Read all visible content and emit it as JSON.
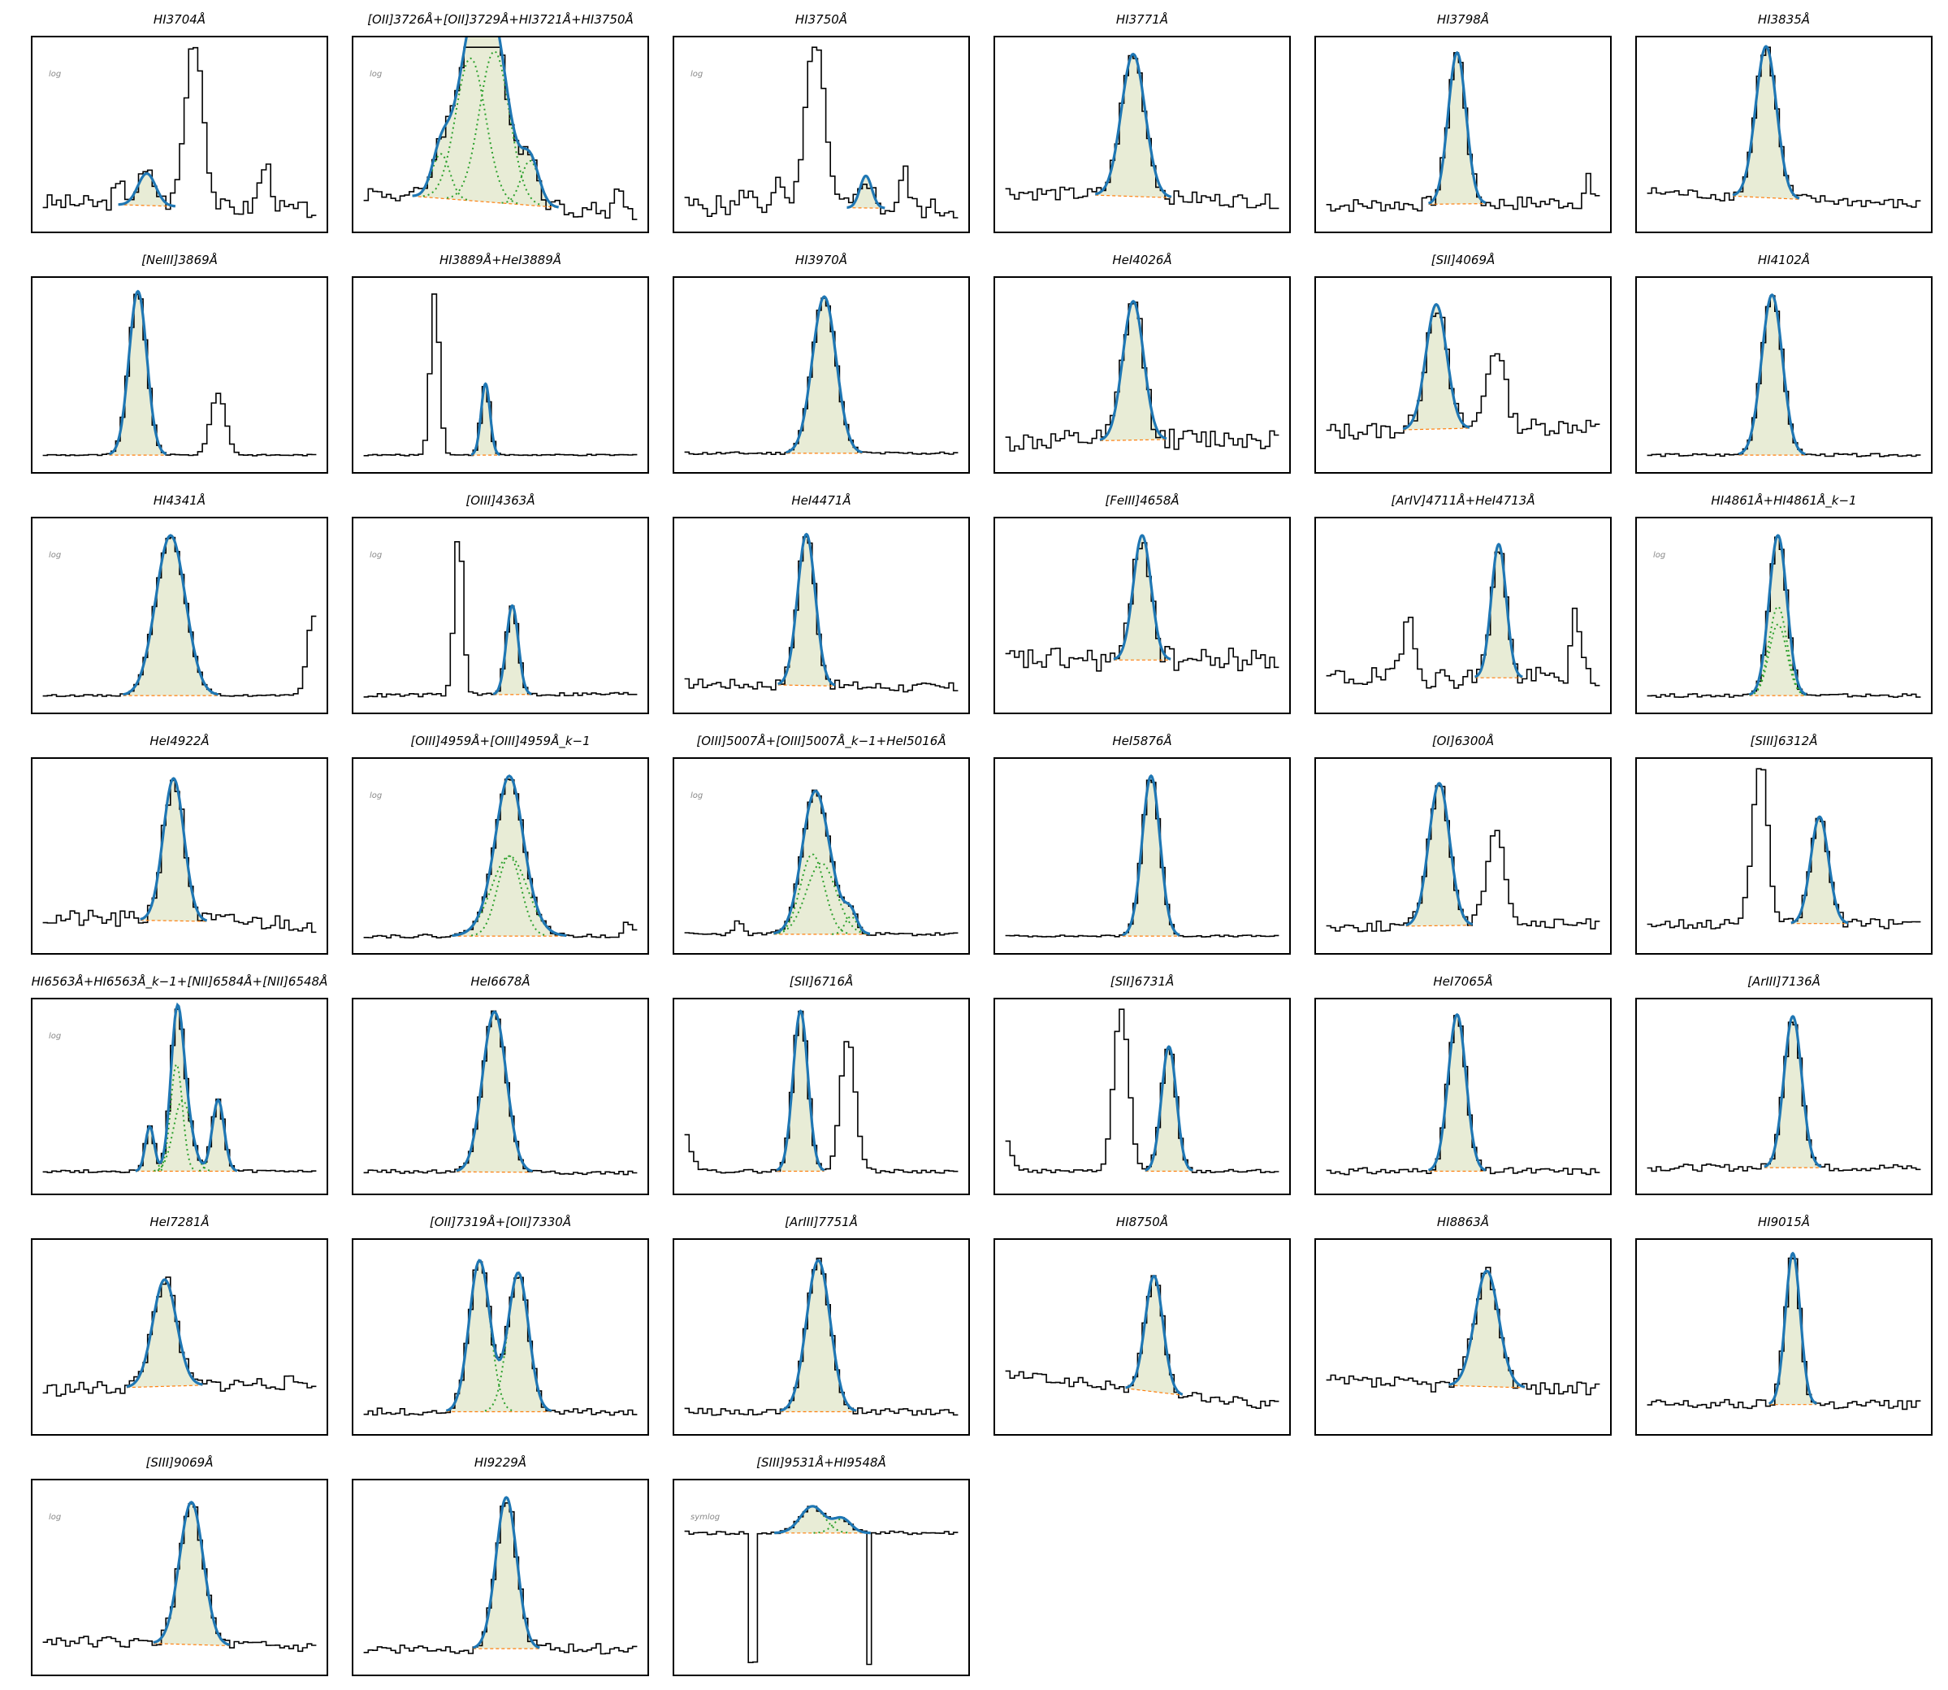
{
  "colors": {
    "spectrum": "#000000",
    "fit": "#1f77b4",
    "component": "#2ca02c",
    "continuum": "#ff7f0e",
    "fill": "#e8ecd6"
  },
  "chart_data": [
    {
      "type": "line",
      "title": "HI3704Å",
      "scale": "log",
      "continuum": [
        0.12,
        0.07
      ],
      "fit": [
        [
          0.39,
          0.03,
          0.18
        ]
      ],
      "others": [
        [
          0.3,
          0.02,
          0.1
        ],
        [
          0.55,
          0.03,
          0.95
        ],
        [
          0.79,
          0.02,
          0.25
        ]
      ],
      "noise": 0.05
    },
    {
      "type": "line",
      "title": "[OII]3726Å+[OII]3729Å+HI3721Å+HI3750Å",
      "scale": "log",
      "continuum": [
        0.18,
        0.05
      ],
      "fit": [
        [
          0.3,
          0.03,
          0.25
        ],
        [
          0.4,
          0.05,
          0.8
        ],
        [
          0.48,
          0.05,
          0.85
        ],
        [
          0.6,
          0.03,
          0.25
        ]
      ],
      "components": true,
      "others": [
        [
          0.9,
          0.01,
          0.2
        ]
      ],
      "noise": 0.05
    },
    {
      "type": "line",
      "title": "HI3750Å",
      "scale": "log",
      "continuum": [
        0.1,
        0.08
      ],
      "fit": [
        [
          0.65,
          0.02,
          0.18
        ]
      ],
      "others": [
        [
          0.48,
          0.03,
          0.95
        ],
        [
          0.35,
          0.015,
          0.15
        ],
        [
          0.25,
          0.015,
          0.1
        ],
        [
          0.78,
          0.015,
          0.2
        ]
      ],
      "noise": 0.06
    },
    {
      "type": "line",
      "title": "HI3771Å",
      "scale": "",
      "continuum": [
        0.18,
        0.12
      ],
      "fit": [
        [
          0.47,
          0.04,
          0.8
        ]
      ],
      "noise": 0.04
    },
    {
      "type": "line",
      "title": "HI3798Å",
      "scale": "",
      "continuum": [
        0.1,
        0.12
      ],
      "fit": [
        [
          0.48,
          0.03,
          0.85
        ]
      ],
      "others": [
        [
          0.92,
          0.01,
          0.15
        ]
      ],
      "noise": 0.04
    },
    {
      "type": "line",
      "title": "HI3835Å",
      "scale": "",
      "continuum": [
        0.18,
        0.1
      ],
      "fit": [
        [
          0.44,
          0.035,
          0.85
        ]
      ],
      "noise": 0.03
    },
    {
      "type": "line",
      "title": "[NeIII]3869Å",
      "scale": "",
      "continuum": [
        0.05,
        0.05
      ],
      "fit": [
        [
          0.36,
          0.03,
          0.92
        ]
      ],
      "others": [
        [
          0.63,
          0.025,
          0.35
        ]
      ],
      "noise": 0.004
    },
    {
      "type": "line",
      "title": "HI3889Å+HeI3889Å",
      "scale": "",
      "continuum": [
        0.05,
        0.05
      ],
      "fit": [
        [
          0.45,
          0.015,
          0.4
        ]
      ],
      "others": [
        [
          0.28,
          0.015,
          0.92
        ]
      ],
      "noise": 0.004
    },
    {
      "type": "line",
      "title": "HI3970Å",
      "scale": "",
      "continuum": [
        0.06,
        0.06
      ],
      "fit": [
        [
          0.51,
          0.04,
          0.88
        ]
      ],
      "noise": 0.008
    },
    {
      "type": "line",
      "title": "HeI4026Å",
      "scale": "",
      "continuum": [
        0.12,
        0.15
      ],
      "fit": [
        [
          0.47,
          0.035,
          0.78
        ]
      ],
      "noise": 0.06
    },
    {
      "type": "line",
      "title": "[SII]4069Å",
      "scale": "",
      "continuum": [
        0.18,
        0.22
      ],
      "fit": [
        [
          0.41,
          0.035,
          0.7
        ]
      ],
      "others": [
        [
          0.61,
          0.03,
          0.45
        ]
      ],
      "noise": 0.05
    },
    {
      "type": "line",
      "title": "HI4102Å",
      "scale": "",
      "continuum": [
        0.05,
        0.05
      ],
      "fit": [
        [
          0.46,
          0.035,
          0.9
        ]
      ],
      "noise": 0.008
    },
    {
      "type": "line",
      "title": "HI4341Å",
      "scale": "log",
      "continuum": [
        0.05,
        0.05
      ],
      "fit": [
        [
          0.47,
          0.05,
          0.9
        ]
      ],
      "others": [
        [
          0.95,
          0.02,
          0.45
        ]
      ],
      "noise": 0.005
    },
    {
      "type": "line",
      "title": "[OIII]4363Å",
      "scale": "log",
      "continuum": [
        0.05,
        0.06
      ],
      "fit": [
        [
          0.54,
          0.02,
          0.5
        ]
      ],
      "others": [
        [
          0.36,
          0.015,
          0.92
        ]
      ],
      "noise": 0.01
    },
    {
      "type": "line",
      "title": "HeI4471Å",
      "scale": "",
      "continuum": [
        0.12,
        0.09
      ],
      "fit": [
        [
          0.45,
          0.03,
          0.85
        ]
      ],
      "noise": 0.03
    },
    {
      "type": "line",
      "title": "[FeIII]4658Å",
      "scale": "",
      "continuum": [
        0.25,
        0.25
      ],
      "fit": [
        [
          0.5,
          0.03,
          0.7
        ]
      ],
      "noise": 0.07
    },
    {
      "type": "line",
      "title": "[ArIV]4711Å+HeI4713Å",
      "scale": "",
      "continuum": [
        0.15,
        0.15
      ],
      "fit": [
        [
          0.62,
          0.025,
          0.75
        ]
      ],
      "others": [
        [
          0.32,
          0.02,
          0.35
        ],
        [
          0.88,
          0.015,
          0.35
        ]
      ],
      "noise": 0.06
    },
    {
      "type": "line",
      "title": "HI4861Å+HI4861Å_k−1",
      "scale": "log",
      "continuum": [
        0.05,
        0.05
      ],
      "fit": [
        [
          0.48,
          0.03,
          0.4
        ],
        [
          0.48,
          0.03,
          0.5
        ]
      ],
      "components": true,
      "noise": 0.01
    },
    {
      "type": "line",
      "title": "HeI4922Å",
      "scale": "",
      "continuum": [
        0.15,
        0.12
      ],
      "fit": [
        [
          0.48,
          0.035,
          0.8
        ]
      ],
      "noise": 0.05
    },
    {
      "type": "line",
      "title": "[OIII]4959Å+[OIII]4959Å_k−1",
      "scale": "log",
      "continuum": [
        0.05,
        0.05
      ],
      "fit": [
        [
          0.53,
          0.04,
          0.45
        ],
        [
          0.53,
          0.06,
          0.45
        ]
      ],
      "components": true,
      "others": [
        [
          0.93,
          0.015,
          0.08
        ]
      ],
      "noise": 0.01
    },
    {
      "type": "line",
      "title": "[OIII]5007Å+[OIII]5007Å_k−1+HeI5016Å",
      "scale": "log",
      "continuum": [
        0.06,
        0.06
      ],
      "fit": [
        [
          0.47,
          0.04,
          0.45
        ],
        [
          0.5,
          0.05,
          0.4
        ],
        [
          0.6,
          0.02,
          0.1
        ]
      ],
      "components": true,
      "others": [
        [
          0.22,
          0.015,
          0.07
        ]
      ],
      "noise": 0.01
    },
    {
      "type": "line",
      "title": "HeI5876Å",
      "scale": "",
      "continuum": [
        0.05,
        0.05
      ],
      "fit": [
        [
          0.53,
          0.03,
          0.9
        ]
      ],
      "noise": 0.005
    },
    {
      "type": "line",
      "title": "[OI]6300Å",
      "scale": "",
      "continuum": [
        0.1,
        0.12
      ],
      "fit": [
        [
          0.42,
          0.035,
          0.8
        ]
      ],
      "others": [
        [
          0.61,
          0.03,
          0.55
        ]
      ],
      "noise": 0.03
    },
    {
      "type": "line",
      "title": "[SIII]6312Å",
      "scale": "",
      "continuum": [
        0.12,
        0.12
      ],
      "fit": [
        [
          0.62,
          0.03,
          0.6
        ]
      ],
      "others": [
        [
          0.42,
          0.025,
          0.92
        ]
      ],
      "noise": 0.03
    },
    {
      "type": "line",
      "title": "HI6563Å+HI6563Å_k−1+[NII]6584Å+[NII]6548Å",
      "scale": "log",
      "continuum": [
        0.08,
        0.08
      ],
      "fit": [
        [
          0.49,
          0.02,
          0.6
        ],
        [
          0.51,
          0.03,
          0.4
        ],
        [
          0.63,
          0.02,
          0.4
        ],
        [
          0.4,
          0.015,
          0.25
        ]
      ],
      "components": true,
      "noise": 0.008
    },
    {
      "type": "line",
      "title": "HeI6678Å",
      "scale": "",
      "continuum": [
        0.08,
        0.07
      ],
      "fit": [
        [
          0.48,
          0.04,
          0.9
        ]
      ],
      "noise": 0.01
    },
    {
      "type": "line",
      "title": "[SII]6716Å",
      "scale": "",
      "continuum": [
        0.08,
        0.08
      ],
      "fit": [
        [
          0.43,
          0.025,
          0.9
        ]
      ],
      "others": [
        [
          0.59,
          0.025,
          0.75
        ],
        [
          0.02,
          0.03,
          0.3
        ]
      ],
      "noise": 0.01
    },
    {
      "type": "line",
      "title": "[SII]6731Å",
      "scale": "",
      "continuum": [
        0.08,
        0.08
      ],
      "fit": [
        [
          0.59,
          0.025,
          0.7
        ]
      ],
      "others": [
        [
          0.43,
          0.025,
          0.92
        ],
        [
          0.02,
          0.03,
          0.25
        ]
      ],
      "noise": 0.01
    },
    {
      "type": "line",
      "title": "HeI7065Å",
      "scale": "",
      "continuum": [
        0.08,
        0.08
      ],
      "fit": [
        [
          0.48,
          0.03,
          0.88
        ]
      ],
      "noise": 0.02
    },
    {
      "type": "line",
      "title": "[ArIII]7136Å",
      "scale": "",
      "continuum": [
        0.1,
        0.1
      ],
      "fit": [
        [
          0.53,
          0.03,
          0.85
        ]
      ],
      "noise": 0.02
    },
    {
      "type": "line",
      "title": "HeI7281Å",
      "scale": "",
      "continuum": [
        0.2,
        0.25
      ],
      "fit": [
        [
          0.45,
          0.04,
          0.6
        ]
      ],
      "noise": 0.04
    },
    {
      "type": "line",
      "title": "[OII]7319Å+[OII]7330Å",
      "scale": "",
      "continuum": [
        0.08,
        0.08
      ],
      "fit": [
        [
          0.43,
          0.035,
          0.85
        ],
        [
          0.56,
          0.035,
          0.78
        ]
      ],
      "components": true,
      "noise": 0.02
    },
    {
      "type": "line",
      "title": "[ArIII]7751Å",
      "scale": "",
      "continuum": [
        0.08,
        0.08
      ],
      "fit": [
        [
          0.49,
          0.04,
          0.85
        ]
      ],
      "noise": 0.02
    },
    {
      "type": "line",
      "title": "HI8750Å",
      "scale": "",
      "continuum": [
        0.3,
        0.1
      ],
      "fit": [
        [
          0.54,
          0.03,
          0.65
        ]
      ],
      "noise": 0.03
    },
    {
      "type": "line",
      "title": "HI8863Å",
      "scale": "",
      "continuum": [
        0.25,
        0.2
      ],
      "fit": [
        [
          0.58,
          0.04,
          0.65
        ]
      ],
      "noise": 0.04
    },
    {
      "type": "line",
      "title": "HI9015Å",
      "scale": "",
      "continuum": [
        0.12,
        0.12
      ],
      "fit": [
        [
          0.53,
          0.025,
          0.85
        ]
      ],
      "noise": 0.03
    },
    {
      "type": "line",
      "title": "[SIII]9069Å",
      "scale": "log",
      "continuum": [
        0.15,
        0.1
      ],
      "fit": [
        [
          0.54,
          0.04,
          0.8
        ]
      ],
      "noise": 0.03
    },
    {
      "type": "line",
      "title": "HI9229Å",
      "scale": "",
      "continuum": [
        0.1,
        0.1
      ],
      "fit": [
        [
          0.52,
          0.035,
          0.85
        ]
      ],
      "noise": 0.03
    },
    {
      "type": "line",
      "title": "[SIII]9531Å+HI9548Å",
      "scale": "symlog",
      "continuum": [
        0.75,
        0.75
      ],
      "fit": [
        [
          0.47,
          0.04,
          0.15
        ],
        [
          0.57,
          0.03,
          0.08
        ]
      ],
      "components": true,
      "absorb": [
        [
          0.27,
          0.01
        ],
        [
          0.66,
          0.01
        ]
      ],
      "noise": 0.01
    }
  ]
}
